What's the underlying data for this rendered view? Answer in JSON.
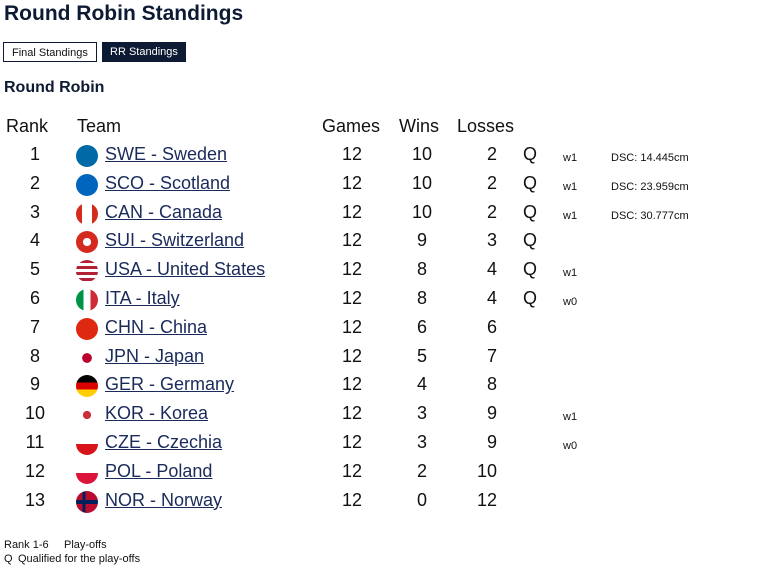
{
  "header": {
    "title": "Round Robin Standings"
  },
  "tabs": [
    "Final Standings",
    "RR Standings"
  ],
  "section_title": "Round Robin",
  "table": {
    "headers": [
      "Rank",
      "Team",
      "Games",
      "Wins",
      "Losses"
    ],
    "rows": [
      {
        "rank": 1,
        "team": "SWE - Sweden",
        "games": 12,
        "wins": 10,
        "losses": 2,
        "q": "Q",
        "note": "w1",
        "dsc": "DSC: 14.445cm"
      },
      {
        "rank": 2,
        "team": "SCO - Scotland",
        "games": 12,
        "wins": 10,
        "losses": 2,
        "q": "Q",
        "note": "w1",
        "dsc": "DSC: 23.959cm"
      },
      {
        "rank": 3,
        "team": "CAN - Canada",
        "games": 12,
        "wins": 10,
        "losses": 2,
        "q": "Q",
        "note": "w1",
        "dsc": "DSC: 30.777cm"
      },
      {
        "rank": 4,
        "team": "SUI - Switzerland",
        "games": 12,
        "wins": 9,
        "losses": 3,
        "q": "Q"
      },
      {
        "rank": 5,
        "team": "USA - United States",
        "games": 12,
        "wins": 8,
        "losses": 4,
        "q": "Q",
        "note": "w1"
      },
      {
        "rank": 6,
        "team": "ITA - Italy",
        "games": 12,
        "wins": 8,
        "losses": 4,
        "q": "Q",
        "note": "w0"
      },
      {
        "rank": 7,
        "team": "CHN - China",
        "games": 12,
        "wins": 6,
        "losses": 6
      },
      {
        "rank": 8,
        "team": "JPN - Japan",
        "games": 12,
        "wins": 5,
        "losses": 7
      },
      {
        "rank": 9,
        "team": "GER - Germany",
        "games": 12,
        "wins": 4,
        "losses": 8
      },
      {
        "rank": 10,
        "team": "KOR - Korea",
        "games": 12,
        "wins": 3,
        "losses": 9,
        "note": "w1"
      },
      {
        "rank": 11,
        "team": "CZE - Czechia",
        "games": 12,
        "wins": 3,
        "losses": 9,
        "note": "w0"
      },
      {
        "rank": 12,
        "team": "POL - Poland",
        "games": 12,
        "wins": 2,
        "losses": 10
      },
      {
        "rank": 13,
        "team": "NOR - Norway",
        "games": 12,
        "wins": 0,
        "losses": 12
      }
    ]
  },
  "legend": [
    {
      "key": "Rank 1-6",
      "text": "Play-offs"
    },
    {
      "key": "Q",
      "text": "Qualified for the play-offs"
    }
  ]
}
